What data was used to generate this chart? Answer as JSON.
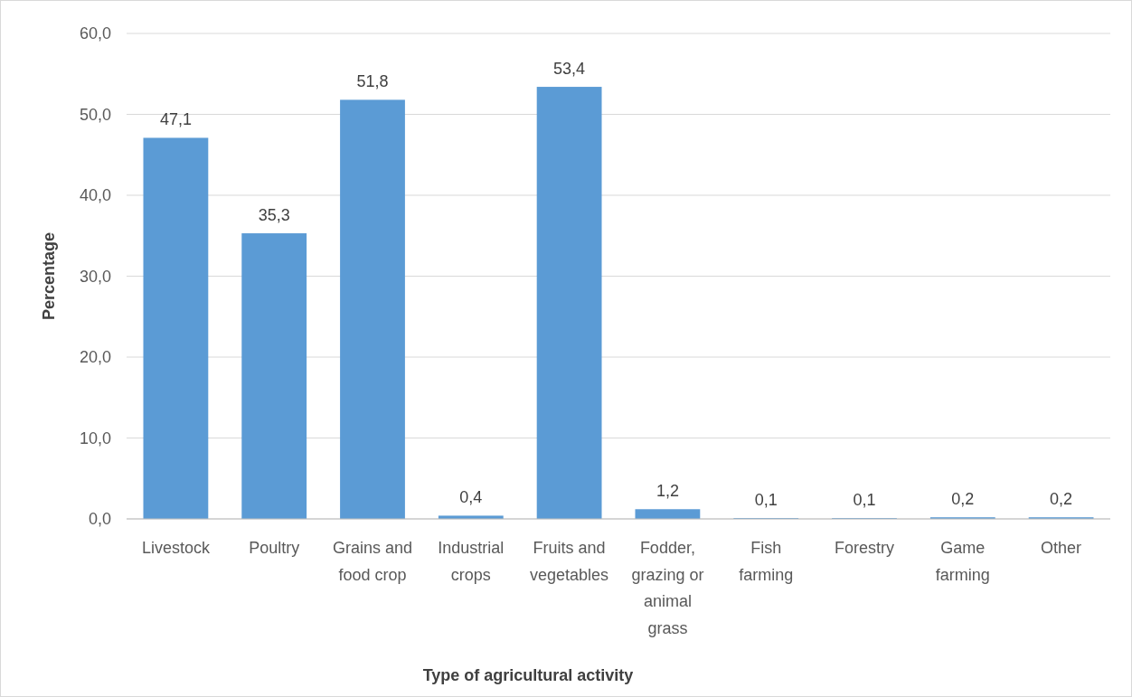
{
  "chart_data": {
    "type": "bar",
    "xlabel": "Type of agricultural activity",
    "ylabel": "Percentage",
    "categories": [
      "Livestock",
      "Poultry",
      "Grains and food crop",
      "Industrial crops",
      "Fruits and vegetables",
      "Fodder, grazing or animal grass",
      "Fish farming",
      "Forestry",
      "Game farming",
      "Other"
    ],
    "values": [
      47.1,
      35.3,
      51.8,
      0.4,
      53.4,
      1.2,
      0.1,
      0.1,
      0.2,
      0.2
    ],
    "value_labels": [
      "47,1",
      "35,3",
      "51,8",
      "0,4",
      "53,4",
      "1,2",
      "0,1",
      "0,1",
      "0,2",
      "0,2"
    ],
    "color": "#5b9bd5",
    "ylim": [
      0,
      60
    ],
    "yticks": [
      {
        "value": 0,
        "label": "0,0"
      },
      {
        "value": 10,
        "label": "10,0"
      },
      {
        "value": 20,
        "label": "20,0"
      },
      {
        "value": 30,
        "label": "30,0"
      },
      {
        "value": 40,
        "label": "40,0"
      },
      {
        "value": 50,
        "label": "50,0"
      },
      {
        "value": 60,
        "label": "60,0"
      }
    ],
    "grid": "y"
  }
}
